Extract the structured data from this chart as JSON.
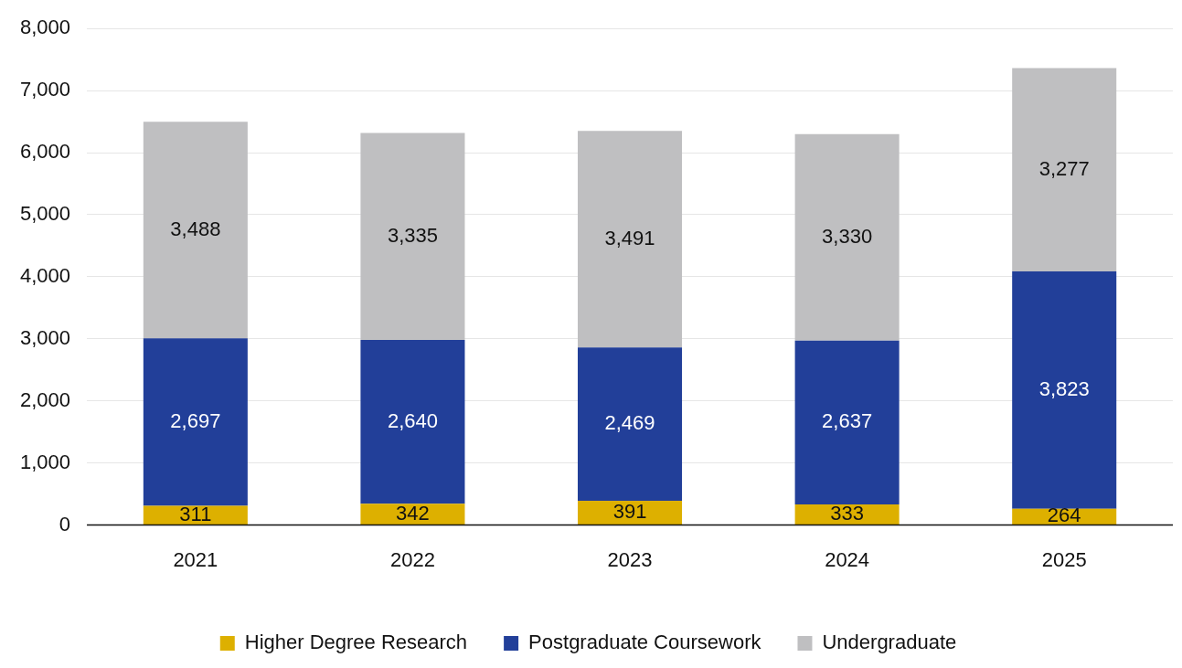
{
  "chart_data": {
    "type": "bar",
    "stacked": true,
    "categories": [
      "2021",
      "2022",
      "2023",
      "2024",
      "2025"
    ],
    "series": [
      {
        "name": "Higher Degree Research",
        "color": "#ddb000",
        "values": [
          311,
          342,
          391,
          333,
          264
        ],
        "value_labels": [
          "311",
          "342",
          "391",
          "333",
          "264"
        ]
      },
      {
        "name": "Postgraduate Coursework",
        "color": "#223f99",
        "values": [
          2697,
          2640,
          2469,
          2637,
          3823
        ],
        "value_labels": [
          "2,697",
          "2,640",
          "2,469",
          "2,637",
          "3,823"
        ]
      },
      {
        "name": "Undergraduate",
        "color": "#bfbfc1",
        "values": [
          3488,
          3335,
          3491,
          3330,
          3277
        ],
        "value_labels": [
          "3,488",
          "3,335",
          "3,491",
          "3,330",
          "3,277"
        ]
      }
    ],
    "ylim": [
      0,
      8000
    ],
    "yticks": [
      {
        "value": 0,
        "label": "0"
      },
      {
        "value": 1000,
        "label": "1,000"
      },
      {
        "value": 2000,
        "label": "2,000"
      },
      {
        "value": 3000,
        "label": "3,000"
      },
      {
        "value": 4000,
        "label": "4,000"
      },
      {
        "value": 5000,
        "label": "5,000"
      },
      {
        "value": 6000,
        "label": "6,000"
      },
      {
        "value": 7000,
        "label": "7,000"
      },
      {
        "value": 8000,
        "label": "8,000"
      }
    ],
    "grid": "y",
    "legend": "bottom"
  }
}
